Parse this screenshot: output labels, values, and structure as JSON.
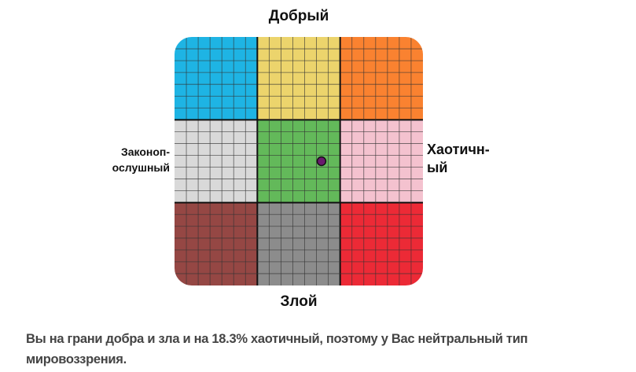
{
  "axes": {
    "top": "Добрый",
    "bottom": "Злой",
    "left": "Законоп-\nослушный",
    "right": "Хаотичн-\nый"
  },
  "cells": [
    {
      "alignment": "lawful-good",
      "color": "#1eb4e4"
    },
    {
      "alignment": "neutral-good",
      "color": "#ecd46c"
    },
    {
      "alignment": "chaotic-good",
      "color": "#fa8230"
    },
    {
      "alignment": "lawful-neutral",
      "color": "#d9d9d9"
    },
    {
      "alignment": "true-neutral",
      "color": "#63b95a"
    },
    {
      "alignment": "chaotic-neutral",
      "color": "#f4c2cf"
    },
    {
      "alignment": "lawful-evil",
      "color": "#954744"
    },
    {
      "alignment": "neutral-evil",
      "color": "#8c8c8c"
    },
    {
      "alignment": "chaotic-evil",
      "color": "#ec2a36"
    }
  ],
  "marker": {
    "chaotic_percent": 18.3,
    "good_evil_percent": 0,
    "color": "#6a1a6e"
  },
  "result_text": "Вы на грани добра и зла и на 18.3% хаотичный, поэтому у Вас нейтральный тип мировоззрения."
}
